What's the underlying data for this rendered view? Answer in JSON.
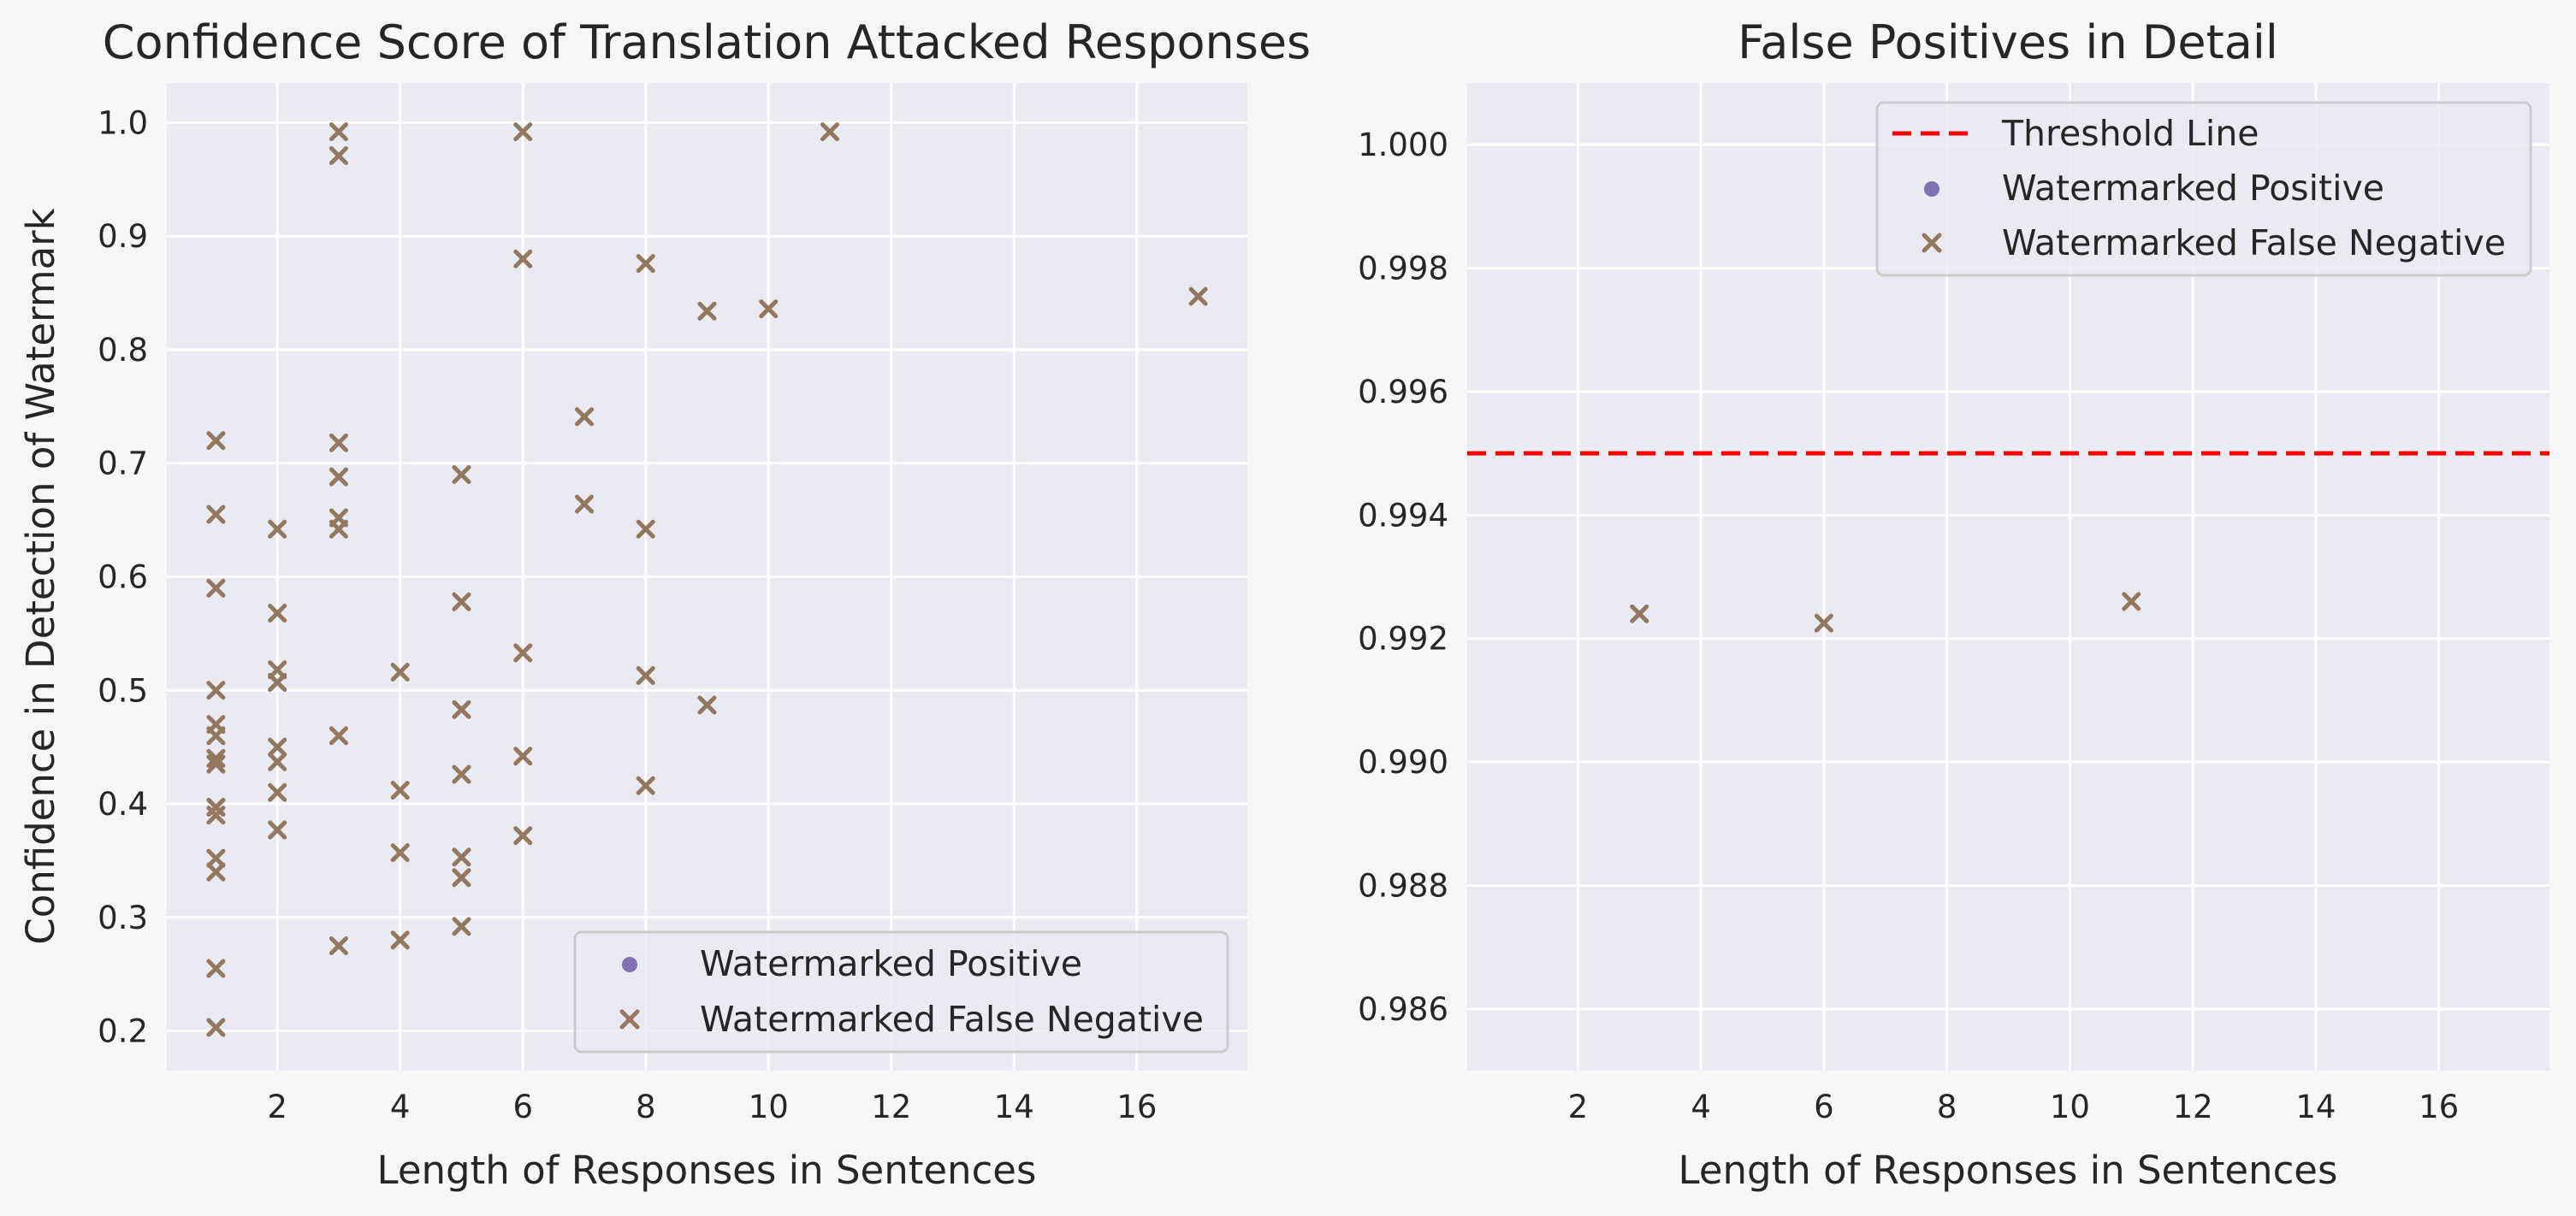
{
  "colors": {
    "background": "#f7f7f7",
    "plot_bg": "#eaeaf2",
    "grid": "#ffffff",
    "positive": "#8172b3",
    "false_negative": "#937860",
    "threshold": "#ff0000",
    "text": "#262626"
  },
  "chart_data": [
    {
      "type": "scatter",
      "title": "Confidence Score of Translation Attacked Responses",
      "xlabel": "Length of Responses in Sentences",
      "ylabel": "Confidence in Detection of Watermark",
      "xlim": [
        0.2,
        17.8
      ],
      "ylim": [
        0.165,
        1.035
      ],
      "xticks": [
        2,
        4,
        6,
        8,
        10,
        12,
        14,
        16
      ],
      "yticks": [
        0.2,
        0.3,
        0.4,
        0.5,
        0.6,
        0.7,
        0.8,
        0.9,
        1.0
      ],
      "ytick_labels": [
        "0.2",
        "0.3",
        "0.4",
        "0.5",
        "0.6",
        "0.7",
        "0.8",
        "0.9",
        "1.0"
      ],
      "grid": true,
      "legend_position": "lower-right",
      "legend": [
        {
          "label": "Watermarked Positive",
          "marker": "circle",
          "color": "#8172b3"
        },
        {
          "label": "Watermarked False Negative",
          "marker": "x",
          "color": "#937860"
        }
      ],
      "series": [
        {
          "name": "Watermarked Positive",
          "marker": "circle",
          "x": [],
          "y": []
        },
        {
          "name": "Watermarked False Negative",
          "marker": "x",
          "x": [
            1,
            1,
            1,
            1,
            1,
            1,
            1,
            1,
            1,
            1,
            1,
            1,
            1,
            1,
            1,
            2,
            2,
            2,
            2,
            2,
            2,
            2,
            2,
            2,
            3,
            3,
            3,
            3,
            3,
            3,
            3,
            3,
            4,
            4,
            4,
            4,
            5,
            5,
            5,
            5,
            5,
            5,
            5,
            6,
            6,
            6,
            6,
            6,
            7,
            7,
            8,
            8,
            8,
            8,
            9,
            9,
            10,
            11,
            17
          ],
          "y": [
            0.72,
            0.655,
            0.59,
            0.5,
            0.47,
            0.46,
            0.44,
            0.435,
            0.397,
            0.39,
            0.352,
            0.34,
            0.255,
            0.203,
            0.397,
            0.642,
            0.568,
            0.518,
            0.507,
            0.45,
            0.437,
            0.41,
            0.377,
            0.507,
            0.992,
            0.971,
            0.718,
            0.688,
            0.652,
            0.642,
            0.46,
            0.275,
            0.516,
            0.412,
            0.357,
            0.28,
            0.69,
            0.578,
            0.483,
            0.426,
            0.353,
            0.335,
            0.292,
            0.992,
            0.88,
            0.533,
            0.442,
            0.372,
            0.741,
            0.664,
            0.876,
            0.642,
            0.513,
            0.416,
            0.834,
            0.487,
            0.836,
            0.992,
            0.847
          ]
        }
      ]
    },
    {
      "type": "scatter",
      "title": "False Positives in Detail",
      "xlabel": "Length of Responses in Sentences",
      "ylabel": "",
      "xlim": [
        0.2,
        17.8
      ],
      "ylim": [
        0.985,
        1.001
      ],
      "xticks": [
        2,
        4,
        6,
        8,
        10,
        12,
        14,
        16
      ],
      "yticks": [
        0.986,
        0.988,
        0.99,
        0.992,
        0.994,
        0.996,
        0.998,
        1.0
      ],
      "ytick_labels": [
        "0.986",
        "0.988",
        "0.990",
        "0.992",
        "0.994",
        "0.996",
        "0.998",
        "1.000"
      ],
      "grid": true,
      "legend_position": "upper-right",
      "threshold": 0.995,
      "legend": [
        {
          "label": "Threshold Line",
          "marker": "dashed-line",
          "color": "#ff0000"
        },
        {
          "label": "Watermarked Positive",
          "marker": "circle",
          "color": "#8172b3"
        },
        {
          "label": "Watermarked False Negative",
          "marker": "x",
          "color": "#937860"
        }
      ],
      "series": [
        {
          "name": "Watermarked Positive",
          "marker": "circle",
          "x": [],
          "y": []
        },
        {
          "name": "Watermarked False Negative",
          "marker": "x",
          "x": [
            3,
            6,
            11
          ],
          "y": [
            0.9924,
            0.99225,
            0.9926
          ]
        }
      ]
    }
  ]
}
